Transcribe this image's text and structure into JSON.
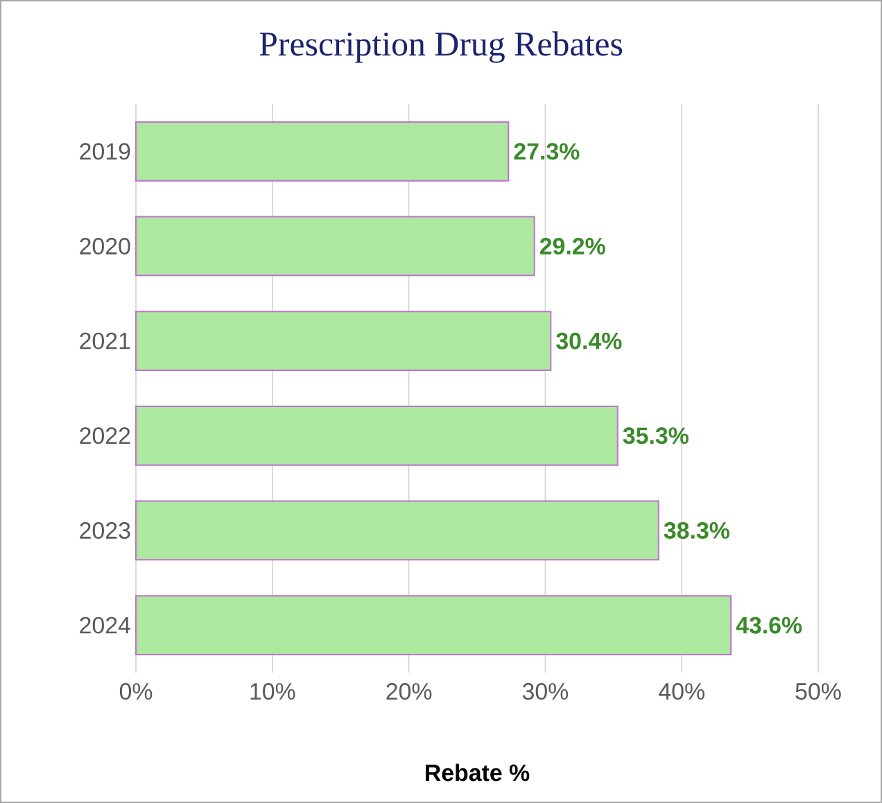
{
  "chart_data": {
    "type": "bar",
    "orientation": "horizontal",
    "title": "Prescription Drug Rebates",
    "xlabel": "Rebate %",
    "categories": [
      "2019",
      "2020",
      "2021",
      "2022",
      "2023",
      "2024"
    ],
    "values": [
      27.3,
      29.2,
      30.4,
      35.3,
      38.3,
      43.6
    ],
    "value_labels": [
      "27.3%",
      "29.2%",
      "30.4%",
      "35.3%",
      "38.3%",
      "43.6%"
    ],
    "color": "#ade8a0",
    "xlim": [
      0,
      50
    ],
    "xticks": [
      {
        "value": 0,
        "label": "0%"
      },
      {
        "value": 10,
        "label": "10%"
      },
      {
        "value": 20,
        "label": "20%"
      },
      {
        "value": 30,
        "label": "30%"
      },
      {
        "value": 40,
        "label": "40%"
      },
      {
        "value": 50,
        "label": "50%"
      }
    ],
    "grid": "x"
  }
}
